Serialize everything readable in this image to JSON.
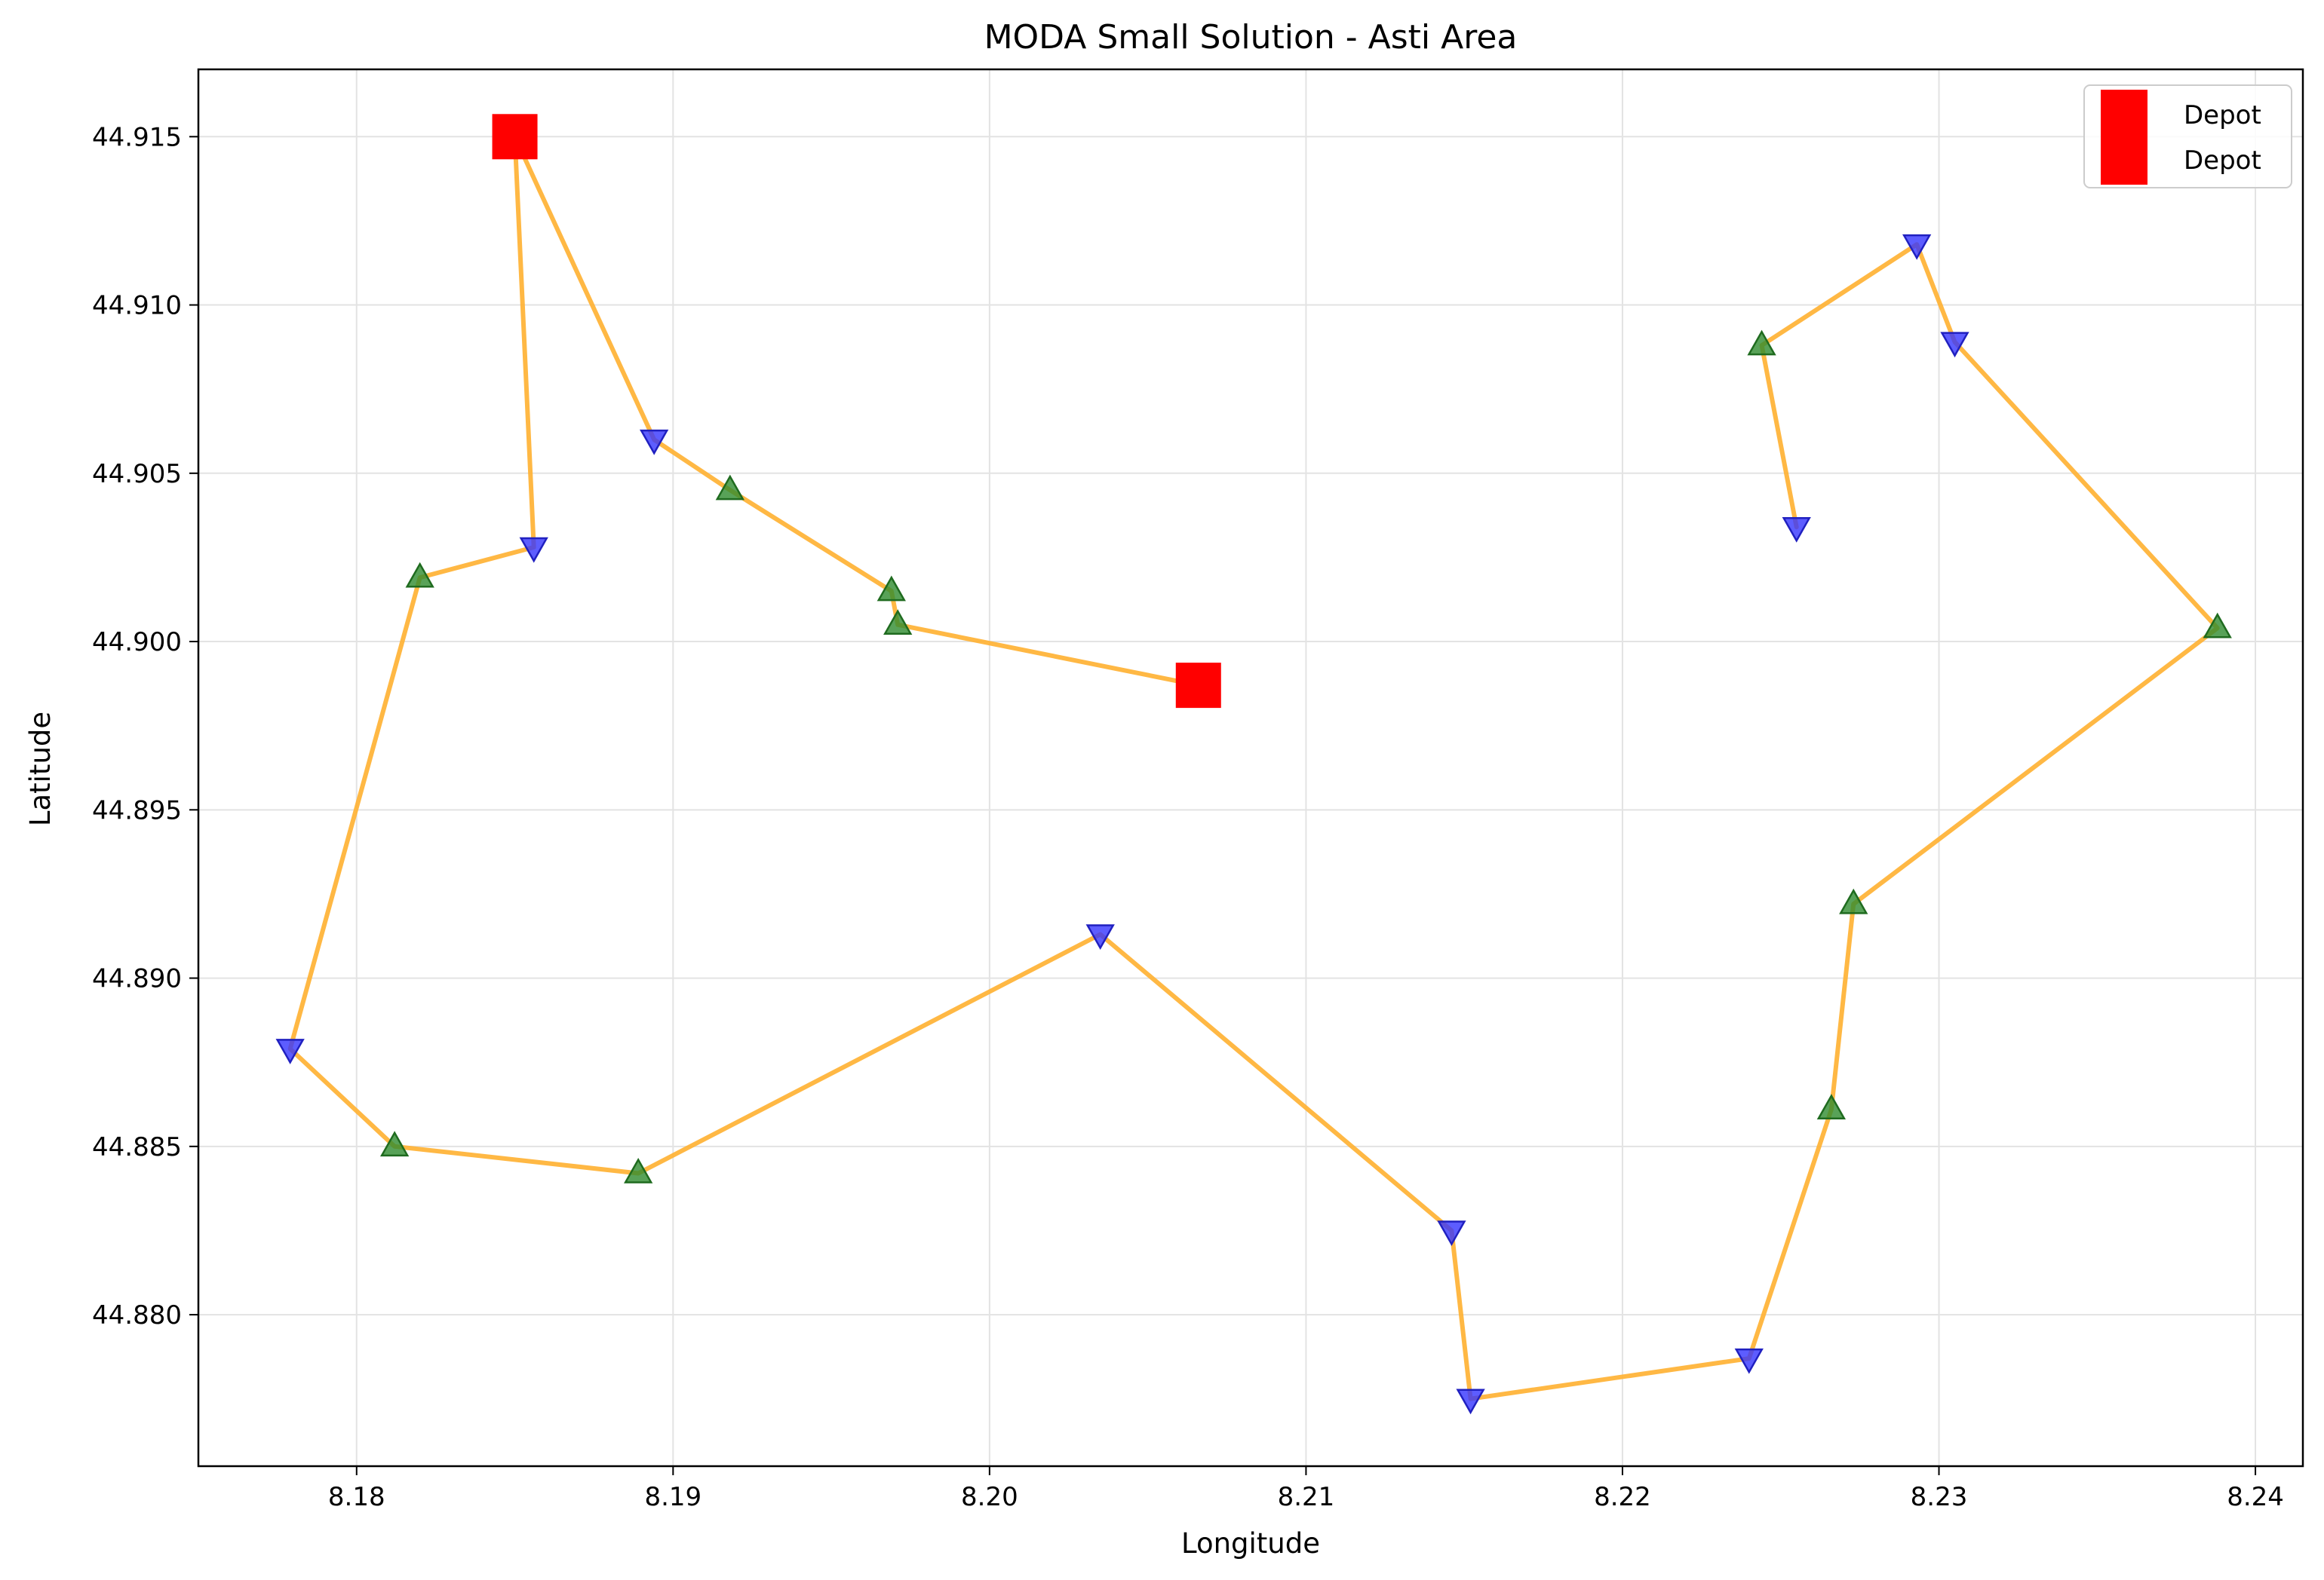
{
  "chart_data": {
    "type": "scatter",
    "title": "MODA Small Solution - Asti Area",
    "xlabel": "Longitude",
    "ylabel": "Latitude",
    "xlim": [
      8.175,
      8.2415
    ],
    "ylim": [
      44.8755,
      44.917
    ],
    "xticks": [
      8.18,
      8.19,
      8.2,
      8.21,
      8.22,
      8.23,
      8.24
    ],
    "xtick_labels": [
      "8.18",
      "8.19",
      "8.20",
      "8.21",
      "8.22",
      "8.23",
      "8.24"
    ],
    "yticks": [
      44.88,
      44.885,
      44.89,
      44.895,
      44.9,
      44.905,
      44.91,
      44.915
    ],
    "ytick_labels": [
      "44.880",
      "44.885",
      "44.890",
      "44.895",
      "44.900",
      "44.905",
      "44.910",
      "44.915"
    ],
    "grid": true,
    "legend": {
      "position": "top-right",
      "entries": [
        {
          "label": "Depot",
          "color": "#ff0000",
          "marker": "square"
        },
        {
          "label": "Depot",
          "color": "#ff0000",
          "marker": "square"
        }
      ]
    },
    "colors": {
      "route": "#ffb030",
      "depot": "#ff0000",
      "pickup": "#2e8b2e",
      "delivery": "#3535ff"
    },
    "routes": [
      {
        "points": [
          [
            8.185,
            44.915
          ],
          [
            8.1856,
            44.9028
          ],
          [
            8.182,
            44.9019
          ],
          [
            8.1779,
            44.8879
          ],
          [
            8.1812,
            44.885
          ],
          [
            8.1889,
            44.8842
          ],
          [
            8.2035,
            44.8913
          ],
          [
            8.2146,
            44.8825
          ],
          [
            8.2152,
            44.8775
          ],
          [
            8.224,
            44.8787
          ],
          [
            8.2266,
            44.8861
          ],
          [
            8.2273,
            44.8922
          ],
          [
            8.2388,
            44.9004
          ],
          [
            8.2305,
            44.9089
          ],
          [
            8.2293,
            44.9118
          ],
          [
            8.2244,
            44.9088
          ],
          [
            8.2255,
            44.9034
          ]
        ]
      },
      {
        "points": [
          [
            8.185,
            44.915
          ],
          [
            8.1894,
            44.906
          ],
          [
            8.1918,
            44.9045
          ],
          [
            8.1969,
            44.9015
          ],
          [
            8.1971,
            44.9005
          ],
          [
            8.2066,
            44.8987
          ]
        ]
      }
    ],
    "depots": [
      [
        8.185,
        44.915
      ],
      [
        8.2066,
        44.8987
      ]
    ],
    "pickups": [
      [
        8.182,
        44.9019
      ],
      [
        8.1812,
        44.885
      ],
      [
        8.1889,
        44.8842
      ],
      [
        8.1918,
        44.9045
      ],
      [
        8.1969,
        44.9015
      ],
      [
        8.1971,
        44.9005
      ],
      [
        8.2266,
        44.8861
      ],
      [
        8.2273,
        44.8922
      ],
      [
        8.2388,
        44.9004
      ],
      [
        8.2244,
        44.9088
      ]
    ],
    "deliveries": [
      [
        8.1856,
        44.9028
      ],
      [
        8.1894,
        44.906
      ],
      [
        8.1779,
        44.8879
      ],
      [
        8.2035,
        44.8913
      ],
      [
        8.2146,
        44.8825
      ],
      [
        8.2152,
        44.8775
      ],
      [
        8.224,
        44.8787
      ],
      [
        8.2293,
        44.9118
      ],
      [
        8.2305,
        44.9089
      ],
      [
        8.2255,
        44.9034
      ]
    ]
  }
}
